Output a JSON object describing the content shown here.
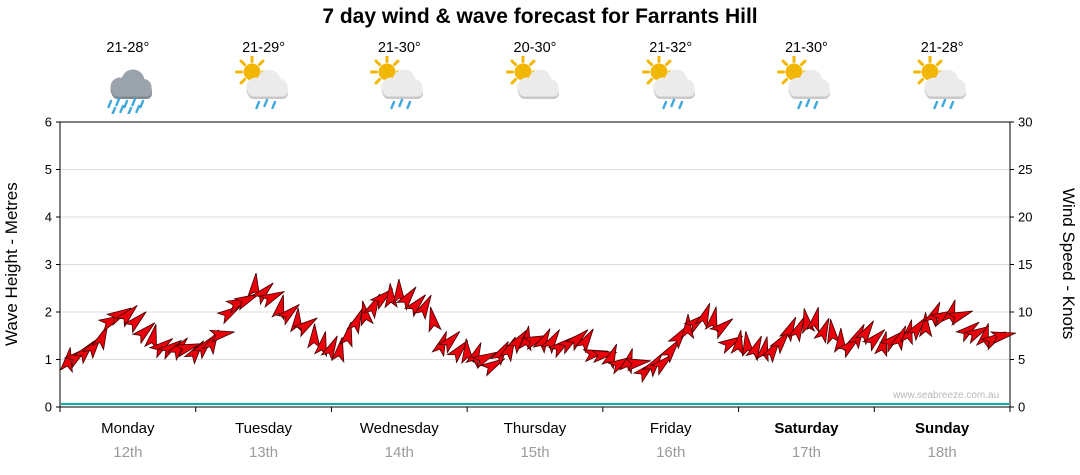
{
  "title": "7 day wind & wave forecast for Farrants Hill",
  "watermark": "www.seabreeze.com.au",
  "days": [
    {
      "name": "Monday",
      "date": "12th",
      "temp": "21-28°",
      "icon": "rain-cloud",
      "weekend": false
    },
    {
      "name": "Tuesday",
      "date": "13th",
      "temp": "21-29°",
      "icon": "sun-cloud-rain",
      "weekend": false
    },
    {
      "name": "Wednesday",
      "date": "14th",
      "temp": "21-30°",
      "icon": "sun-cloud-rain",
      "weekend": false
    },
    {
      "name": "Thursday",
      "date": "15th",
      "temp": "20-30°",
      "icon": "sun-cloud",
      "weekend": false
    },
    {
      "name": "Friday",
      "date": "16th",
      "temp": "21-32°",
      "icon": "sun-cloud-rain",
      "weekend": false
    },
    {
      "name": "Saturday",
      "date": "17th",
      "temp": "21-30°",
      "icon": "sun-cloud-rain",
      "weekend": true
    },
    {
      "name": "Sunday",
      "date": "18th",
      "temp": "21-28°",
      "icon": "sun-cloud-rain",
      "weekend": true
    }
  ],
  "axes": {
    "left_label": "Wave Height - Metres",
    "left_ticks": [
      0,
      1,
      2,
      3,
      4,
      5,
      6
    ],
    "right_label": "Wind Speed - Knots",
    "right_ticks": [
      0,
      5,
      10,
      15,
      20,
      25,
      30
    ]
  },
  "colors": {
    "arrow": "#e8000a",
    "arrow_outline": "#420000",
    "wave_line": "#00b2a9",
    "grid": "#dcdcdc",
    "frame": "#000000",
    "date_text": "#9b9b9b",
    "rain_drop": "#3fa9dc",
    "sun": "#f2b705",
    "cloud_light": "#ebebeb",
    "cloud_light_shade": "#c9c9c9",
    "cloud_dark": "#9aa3ab",
    "cloud_dark_shade": "#7f8890"
  },
  "chart_data": {
    "type": "line",
    "title": "7 day wind & wave forecast for Farrants Hill",
    "x_categories": [
      "Monday 12th",
      "Tuesday 13th",
      "Wednesday 14th",
      "Thursday 15th",
      "Friday 16th",
      "Saturday 17th",
      "Sunday 18th"
    ],
    "points_per_day": 8,
    "ylabel_left": "Wave Height - Metres",
    "ylabel_right": "Wind Speed - Knots",
    "ylim_left": [
      0,
      6
    ],
    "ylim_right": [
      0,
      30
    ],
    "series": [
      {
        "name": "Wind Speed (knots)",
        "axis": "right",
        "values": [
          4.5,
          5.5,
          7.5,
          10,
          9,
          7,
          6,
          5.8,
          6,
          8,
          11,
          12.5,
          11.5,
          10,
          8.5,
          6.5,
          6,
          8.5,
          11,
          12,
          11.5,
          10.5,
          7,
          6,
          5,
          4.5,
          6.5,
          7.5,
          7,
          6.5,
          7,
          6,
          5.5,
          4.5,
          3.8,
          5,
          7.5,
          9,
          9.5,
          7,
          6,
          5.5,
          7,
          8.5,
          9,
          7.5,
          6.5,
          7.5,
          6.5,
          7.5,
          8.5,
          9.5,
          10,
          8.5,
          7,
          7.5
        ]
      },
      {
        "name": "Wave Height (m)",
        "axis": "left",
        "values": [
          0.05,
          0.05,
          0.05,
          0.05,
          0.05,
          0.05,
          0.05
        ]
      }
    ]
  }
}
